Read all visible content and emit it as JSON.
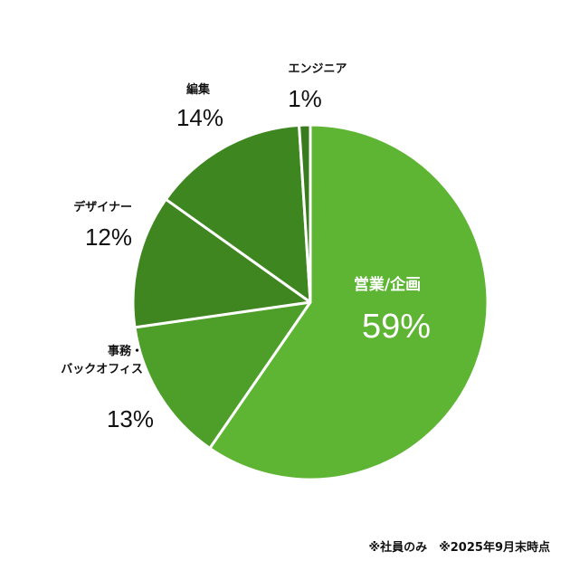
{
  "chart_data": {
    "type": "pie",
    "title": "",
    "start_angle_deg": 0,
    "direction": "clockwise",
    "slices": [
      {
        "label": "営業/企画",
        "value": 59,
        "display": "59%",
        "color": "#5db533"
      },
      {
        "label": "事務・\nバックオフィス",
        "value": 13,
        "display": "13%",
        "color": "#4e9f2a"
      },
      {
        "label": "デザイナー",
        "value": 12,
        "display": "12%",
        "color": "#3f8520"
      },
      {
        "label": "編集",
        "value": 14,
        "display": "14%",
        "color": "#3e861f"
      },
      {
        "label": "エンジニア",
        "value": 1,
        "display": "1%",
        "color": "#3a7c1d"
      }
    ],
    "labels_inside": [
      "営業/企画"
    ]
  },
  "footnote": "※社員のみ　※2025年9月末時点"
}
